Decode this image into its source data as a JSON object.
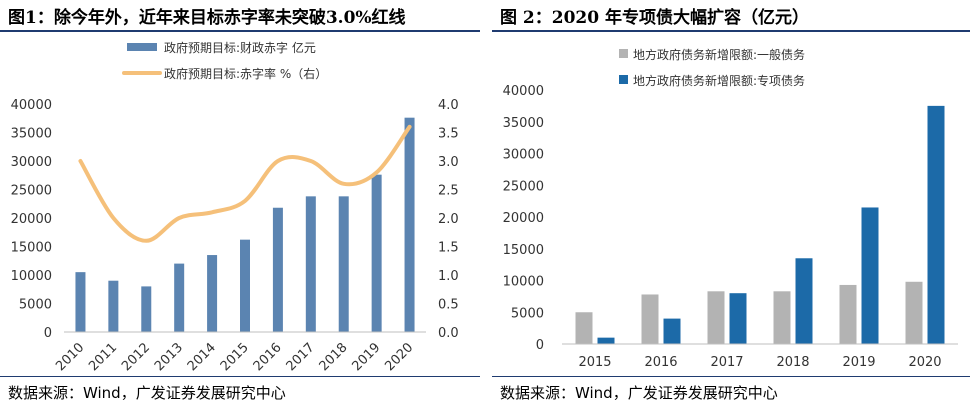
{
  "left": {
    "title": "图1：除今年外，近年来目标赤字率未突破3.0%红线",
    "source": "数据来源：Wind，广发证券发展研究中心",
    "colors": {
      "bar": "#5b84b1",
      "line": "#f5c07a"
    },
    "chart_data": {
      "type": "bar",
      "categories": [
        "2010",
        "2011",
        "2012",
        "2013",
        "2014",
        "2015",
        "2016",
        "2017",
        "2018",
        "2019",
        "2020"
      ],
      "series": [
        {
          "name": "政府预期目标:财政赤字 亿元",
          "type": "bar",
          "axis": "left",
          "values": [
            10500,
            9000,
            8000,
            12000,
            13500,
            16200,
            21800,
            23800,
            23800,
            27600,
            37600
          ]
        },
        {
          "name": "政府预期目标:赤字率 %（右）",
          "type": "line",
          "axis": "right",
          "values": [
            3.0,
            2.0,
            1.6,
            2.0,
            2.1,
            2.3,
            3.0,
            3.0,
            2.6,
            2.8,
            3.6
          ]
        }
      ],
      "yticks_left": [
        "0",
        "5000",
        "10000",
        "15000",
        "20000",
        "25000",
        "30000",
        "35000",
        "40000"
      ],
      "yticks_right": [
        "0.0",
        "0.5",
        "1.0",
        "1.5",
        "2.0",
        "2.5",
        "3.0",
        "3.5",
        "4.0"
      ],
      "ylim_left": [
        0,
        40000
      ],
      "ylim_right": [
        0,
        4.0
      ],
      "grid": false,
      "legend": "top"
    }
  },
  "right": {
    "title": "图 2：2020 年专项债大幅扩容（亿元）",
    "source": "数据来源：Wind，广发证券发展研究中心",
    "colors": {
      "general": "#b3b3b3",
      "special": "#1c6aa8"
    },
    "chart_data": {
      "type": "bar",
      "categories": [
        "2015",
        "2016",
        "2017",
        "2018",
        "2019",
        "2020"
      ],
      "series": [
        {
          "name": "地方政府债务新增限额:一般债务",
          "values": [
            5000,
            7800,
            8300,
            8300,
            9300,
            9800
          ]
        },
        {
          "name": "地方政府债务新增限额:专项债务",
          "values": [
            1000,
            4000,
            8000,
            13500,
            21500,
            37500
          ]
        }
      ],
      "yticks": [
        "0",
        "5000",
        "10000",
        "15000",
        "20000",
        "25000",
        "30000",
        "35000",
        "40000"
      ],
      "ylim": [
        0,
        40000
      ],
      "grid": false,
      "legend": "top"
    }
  }
}
